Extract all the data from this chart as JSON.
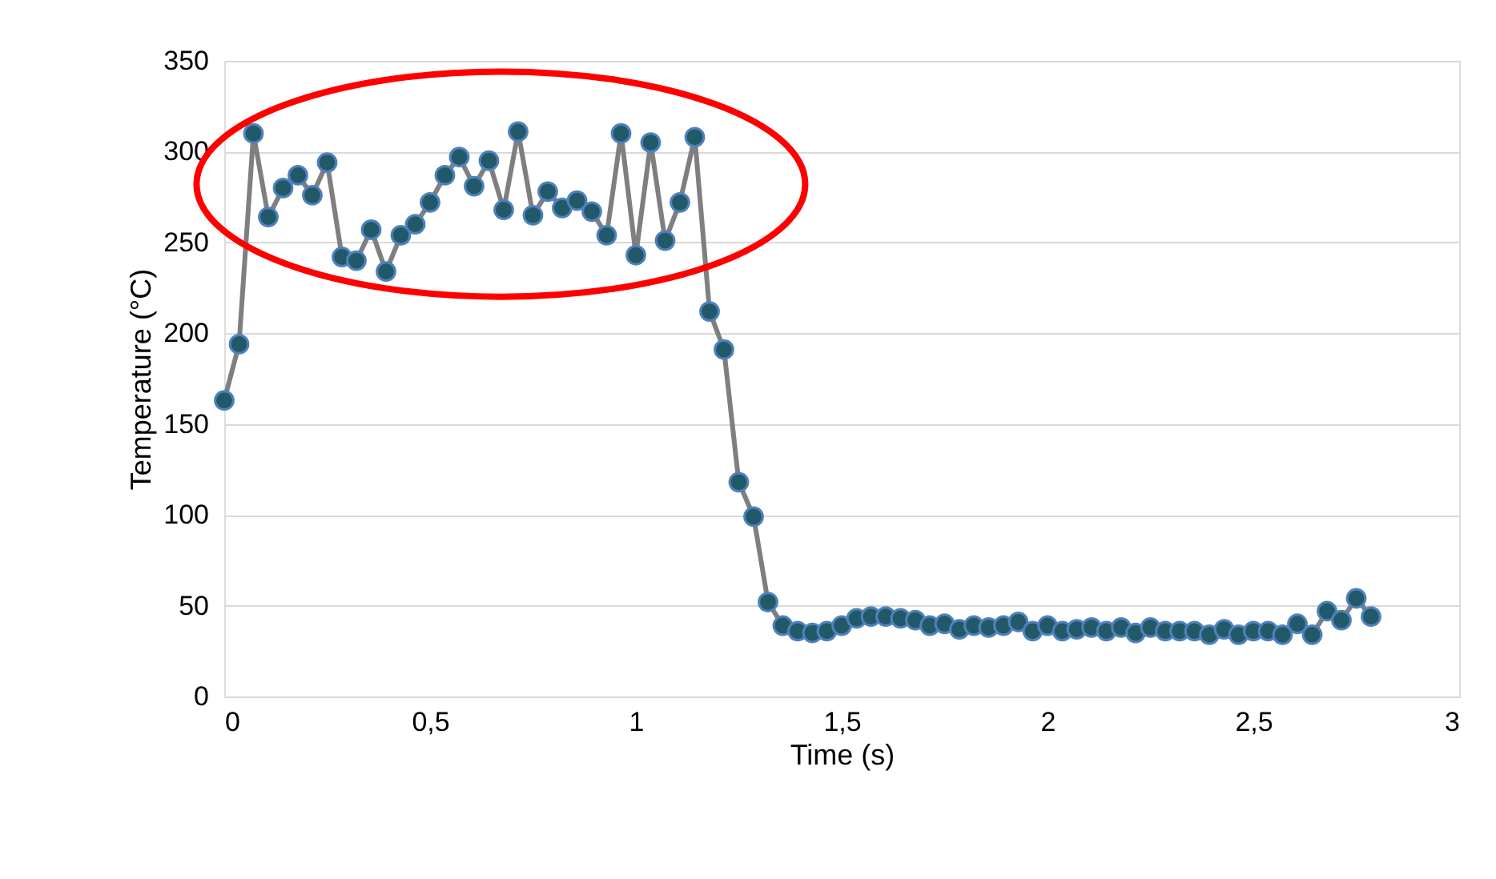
{
  "chart_data": {
    "type": "line",
    "xlabel": "Time (s)",
    "ylabel": "Temperature (°C)",
    "x": [
      0,
      0.036,
      0.071,
      0.107,
      0.143,
      0.179,
      0.214,
      0.25,
      0.286,
      0.321,
      0.357,
      0.393,
      0.429,
      0.464,
      0.5,
      0.536,
      0.571,
      0.607,
      0.643,
      0.679,
      0.714,
      0.75,
      0.786,
      0.821,
      0.857,
      0.893,
      0.929,
      0.964,
      1.0,
      1.036,
      1.071,
      1.107,
      1.143,
      1.179,
      1.214,
      1.25,
      1.286,
      1.321,
      1.357,
      1.393,
      1.429,
      1.464,
      1.5,
      1.536,
      1.571,
      1.607,
      1.643,
      1.679,
      1.714,
      1.75,
      1.786,
      1.821,
      1.857,
      1.893,
      1.929,
      1.964,
      2.0,
      2.036,
      2.071,
      2.107,
      2.143,
      2.179,
      2.214,
      2.25,
      2.286,
      2.321,
      2.357,
      2.393,
      2.429,
      2.464,
      2.5,
      2.536,
      2.571,
      2.607,
      2.643,
      2.679,
      2.714,
      2.75,
      2.786
    ],
    "series": [
      {
        "color": "#7f7f7f",
        "values": [
          163,
          194,
          310,
          264,
          280,
          287,
          276,
          294,
          242,
          240,
          257,
          234,
          254,
          260,
          272,
          287,
          297,
          281,
          295,
          268,
          311,
          265,
          278,
          269,
          273,
          267,
          254,
          310,
          243,
          305,
          251,
          272,
          308,
          212,
          191,
          118,
          99,
          52,
          39,
          36,
          35,
          36,
          39,
          43,
          44,
          44,
          43,
          42,
          39,
          40,
          37,
          39,
          38,
          39,
          41,
          36,
          39,
          36,
          37,
          38,
          36,
          38,
          35,
          38,
          36,
          36,
          36,
          34,
          37,
          34,
          36,
          36,
          34,
          40,
          34,
          47,
          42,
          54,
          44
        ]
      }
    ],
    "xlim": [
      0,
      3
    ],
    "xticks": [
      0,
      {
        "value": 0.5,
        "label": "0,5"
      },
      1,
      {
        "value": 1.5,
        "label": "1,5"
      },
      2,
      {
        "value": 2.5,
        "label": "2,5"
      },
      3
    ],
    "ylim": [
      0,
      350
    ],
    "yticks": [
      0,
      50,
      100,
      150,
      200,
      250,
      300,
      350
    ],
    "grid": "y",
    "marker": "circle",
    "line_style": "solid"
  }
}
